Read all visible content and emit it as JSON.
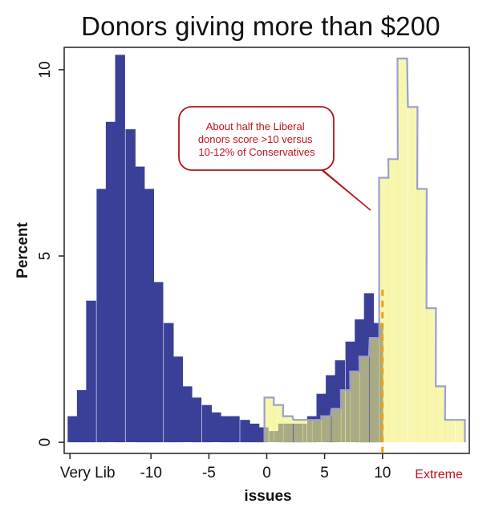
{
  "chart_data": {
    "type": "histogram",
    "title": "Donors giving more than $200",
    "xlabel": "issues",
    "ylabel": "Percent",
    "xlim": [
      -17.5,
      17.5
    ],
    "ylim": [
      -0.3,
      10.6
    ],
    "grid": false,
    "x_ticks": [
      {
        "value": -17,
        "label": "Very Lib"
      },
      {
        "value": -10,
        "label": "-10"
      },
      {
        "value": -5,
        "label": "-5"
      },
      {
        "value": 0,
        "label": "0"
      },
      {
        "value": 5,
        "label": "5"
      },
      {
        "value": 10,
        "label": "10"
      }
    ],
    "extra_x_label": {
      "value": 15.5,
      "label": "Extreme"
    },
    "y_ticks": [
      {
        "value": 0,
        "label": "0"
      },
      {
        "value": 5,
        "label": "5"
      },
      {
        "value": 10,
        "label": "10"
      }
    ],
    "series": [
      {
        "color": "#3a3f97",
        "bin_starts": [
          -17.2,
          -16.4,
          -15.6,
          -14.7,
          -13.9,
          -13.1,
          -12.2,
          -11.4,
          -10.6,
          -9.8,
          -8.9,
          -8.1,
          -7.3,
          -6.5,
          -5.6,
          -4.8,
          -4.0,
          -3.2,
          -2.3,
          -1.5,
          -0.7,
          0.2,
          1.0,
          1.8,
          2.6,
          3.5,
          4.3,
          5.1,
          5.9,
          6.8,
          7.6,
          8.4,
          9.2
        ],
        "bin_width": 0.82,
        "values": [
          0.7,
          1.4,
          3.8,
          6.8,
          8.6,
          10.4,
          8.4,
          7.4,
          6.8,
          4.3,
          3.2,
          2.3,
          1.5,
          1.2,
          1.0,
          0.8,
          0.7,
          0.7,
          0.6,
          0.5,
          0.4,
          0.3,
          0.5,
          0.5,
          0.5,
          0.7,
          1.3,
          1.8,
          2.2,
          2.7,
          3.3,
          4.0,
          3.2
        ]
      },
      {
        "color": "#f3f27b",
        "bin_starts": [
          -0.2,
          0.6,
          1.4,
          2.3,
          3.1,
          3.9,
          4.7,
          5.6,
          6.4,
          7.2,
          8.0,
          8.9,
          9.7,
          10.5,
          11.3,
          12.2,
          13.0,
          13.8,
          14.6,
          15.4,
          16.3
        ],
        "bin_width": 0.82,
        "values": [
          1.2,
          1.0,
          0.7,
          0.6,
          0.6,
          0.6,
          0.7,
          0.9,
          1.4,
          1.9,
          2.3,
          2.8,
          7.1,
          7.6,
          10.3,
          9.0,
          6.8,
          3.6,
          1.5,
          0.6,
          0.6
        ]
      }
    ],
    "annotations": [
      {
        "text": "About half the Liberal donors score >10 versus 10-12% of Conservatives",
        "lines": [
          "About half the Liberal",
          "donors score >10 versus",
          "10-12% of Conservatives"
        ]
      }
    ],
    "reference_line": {
      "x": 10,
      "style": "dashed",
      "color": "#f0a010"
    }
  }
}
